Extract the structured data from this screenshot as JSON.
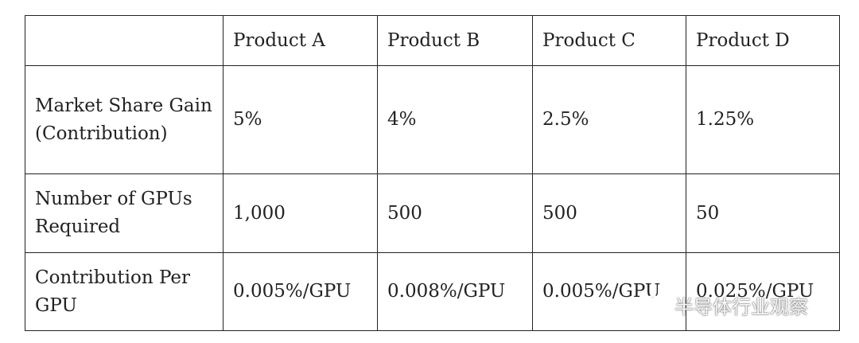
{
  "table": {
    "header": [
      "",
      "Product A",
      "Product B",
      "Product C",
      "Product D"
    ],
    "rows": [
      [
        "Market Share Gain (Contribution)",
        "5%",
        "4%",
        "2.5%",
        "1.25%"
      ],
      [
        "Number of GPUs Required",
        "1,000",
        "500",
        "500",
        "50"
      ],
      [
        "Contribution Per GPU",
        "0.005%/GPU",
        "0.008%/GPU",
        "0.005%/GPU",
        "0.025%/GPU"
      ]
    ]
  },
  "watermark": "半导体行业观察"
}
